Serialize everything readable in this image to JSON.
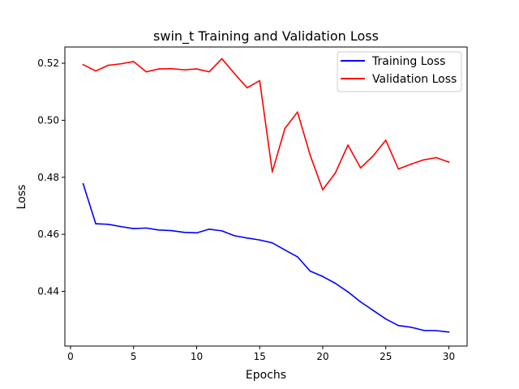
{
  "chart_data": {
    "type": "line",
    "title": "swin_t Training and Validation Loss",
    "xlabel": "Epochs",
    "ylabel": "Loss",
    "xlim": [
      -0.45,
      31.45
    ],
    "ylim": [
      0.4208,
      0.5257
    ],
    "xticks": [
      0,
      5,
      10,
      15,
      20,
      25,
      30
    ],
    "yticks": [
      0.44,
      0.46,
      0.48,
      0.5,
      0.52
    ],
    "ytick_labels": [
      "0.44",
      "0.46",
      "0.48",
      "0.50",
      "0.52"
    ],
    "grid": false,
    "legend_position": "top-right",
    "x": [
      1,
      2,
      3,
      4,
      5,
      6,
      7,
      8,
      9,
      10,
      11,
      12,
      13,
      14,
      15,
      16,
      17,
      18,
      19,
      20,
      21,
      22,
      23,
      24,
      25,
      26,
      27,
      28,
      29,
      30
    ],
    "series": [
      {
        "name": "Training Loss",
        "color": "#0000ff",
        "values": [
          0.4777,
          0.4637,
          0.4635,
          0.4627,
          0.462,
          0.4622,
          0.4615,
          0.4613,
          0.4607,
          0.4605,
          0.4618,
          0.4612,
          0.4595,
          0.4587,
          0.458,
          0.457,
          0.4545,
          0.4521,
          0.4471,
          0.4452,
          0.4428,
          0.4398,
          0.4363,
          0.4333,
          0.4303,
          0.428,
          0.4274,
          0.4263,
          0.4262,
          0.4257
        ]
      },
      {
        "name": "Validation Loss",
        "color": "#ff0000",
        "values": [
          0.5195,
          0.5173,
          0.5193,
          0.5198,
          0.5206,
          0.517,
          0.518,
          0.5181,
          0.5177,
          0.518,
          0.517,
          0.5216,
          0.5164,
          0.5114,
          0.5139,
          0.4819,
          0.4971,
          0.5029,
          0.4878,
          0.4756,
          0.4815,
          0.4913,
          0.4833,
          0.4875,
          0.493,
          0.4829,
          0.4846,
          0.4861,
          0.4869,
          0.4853
        ]
      }
    ]
  }
}
